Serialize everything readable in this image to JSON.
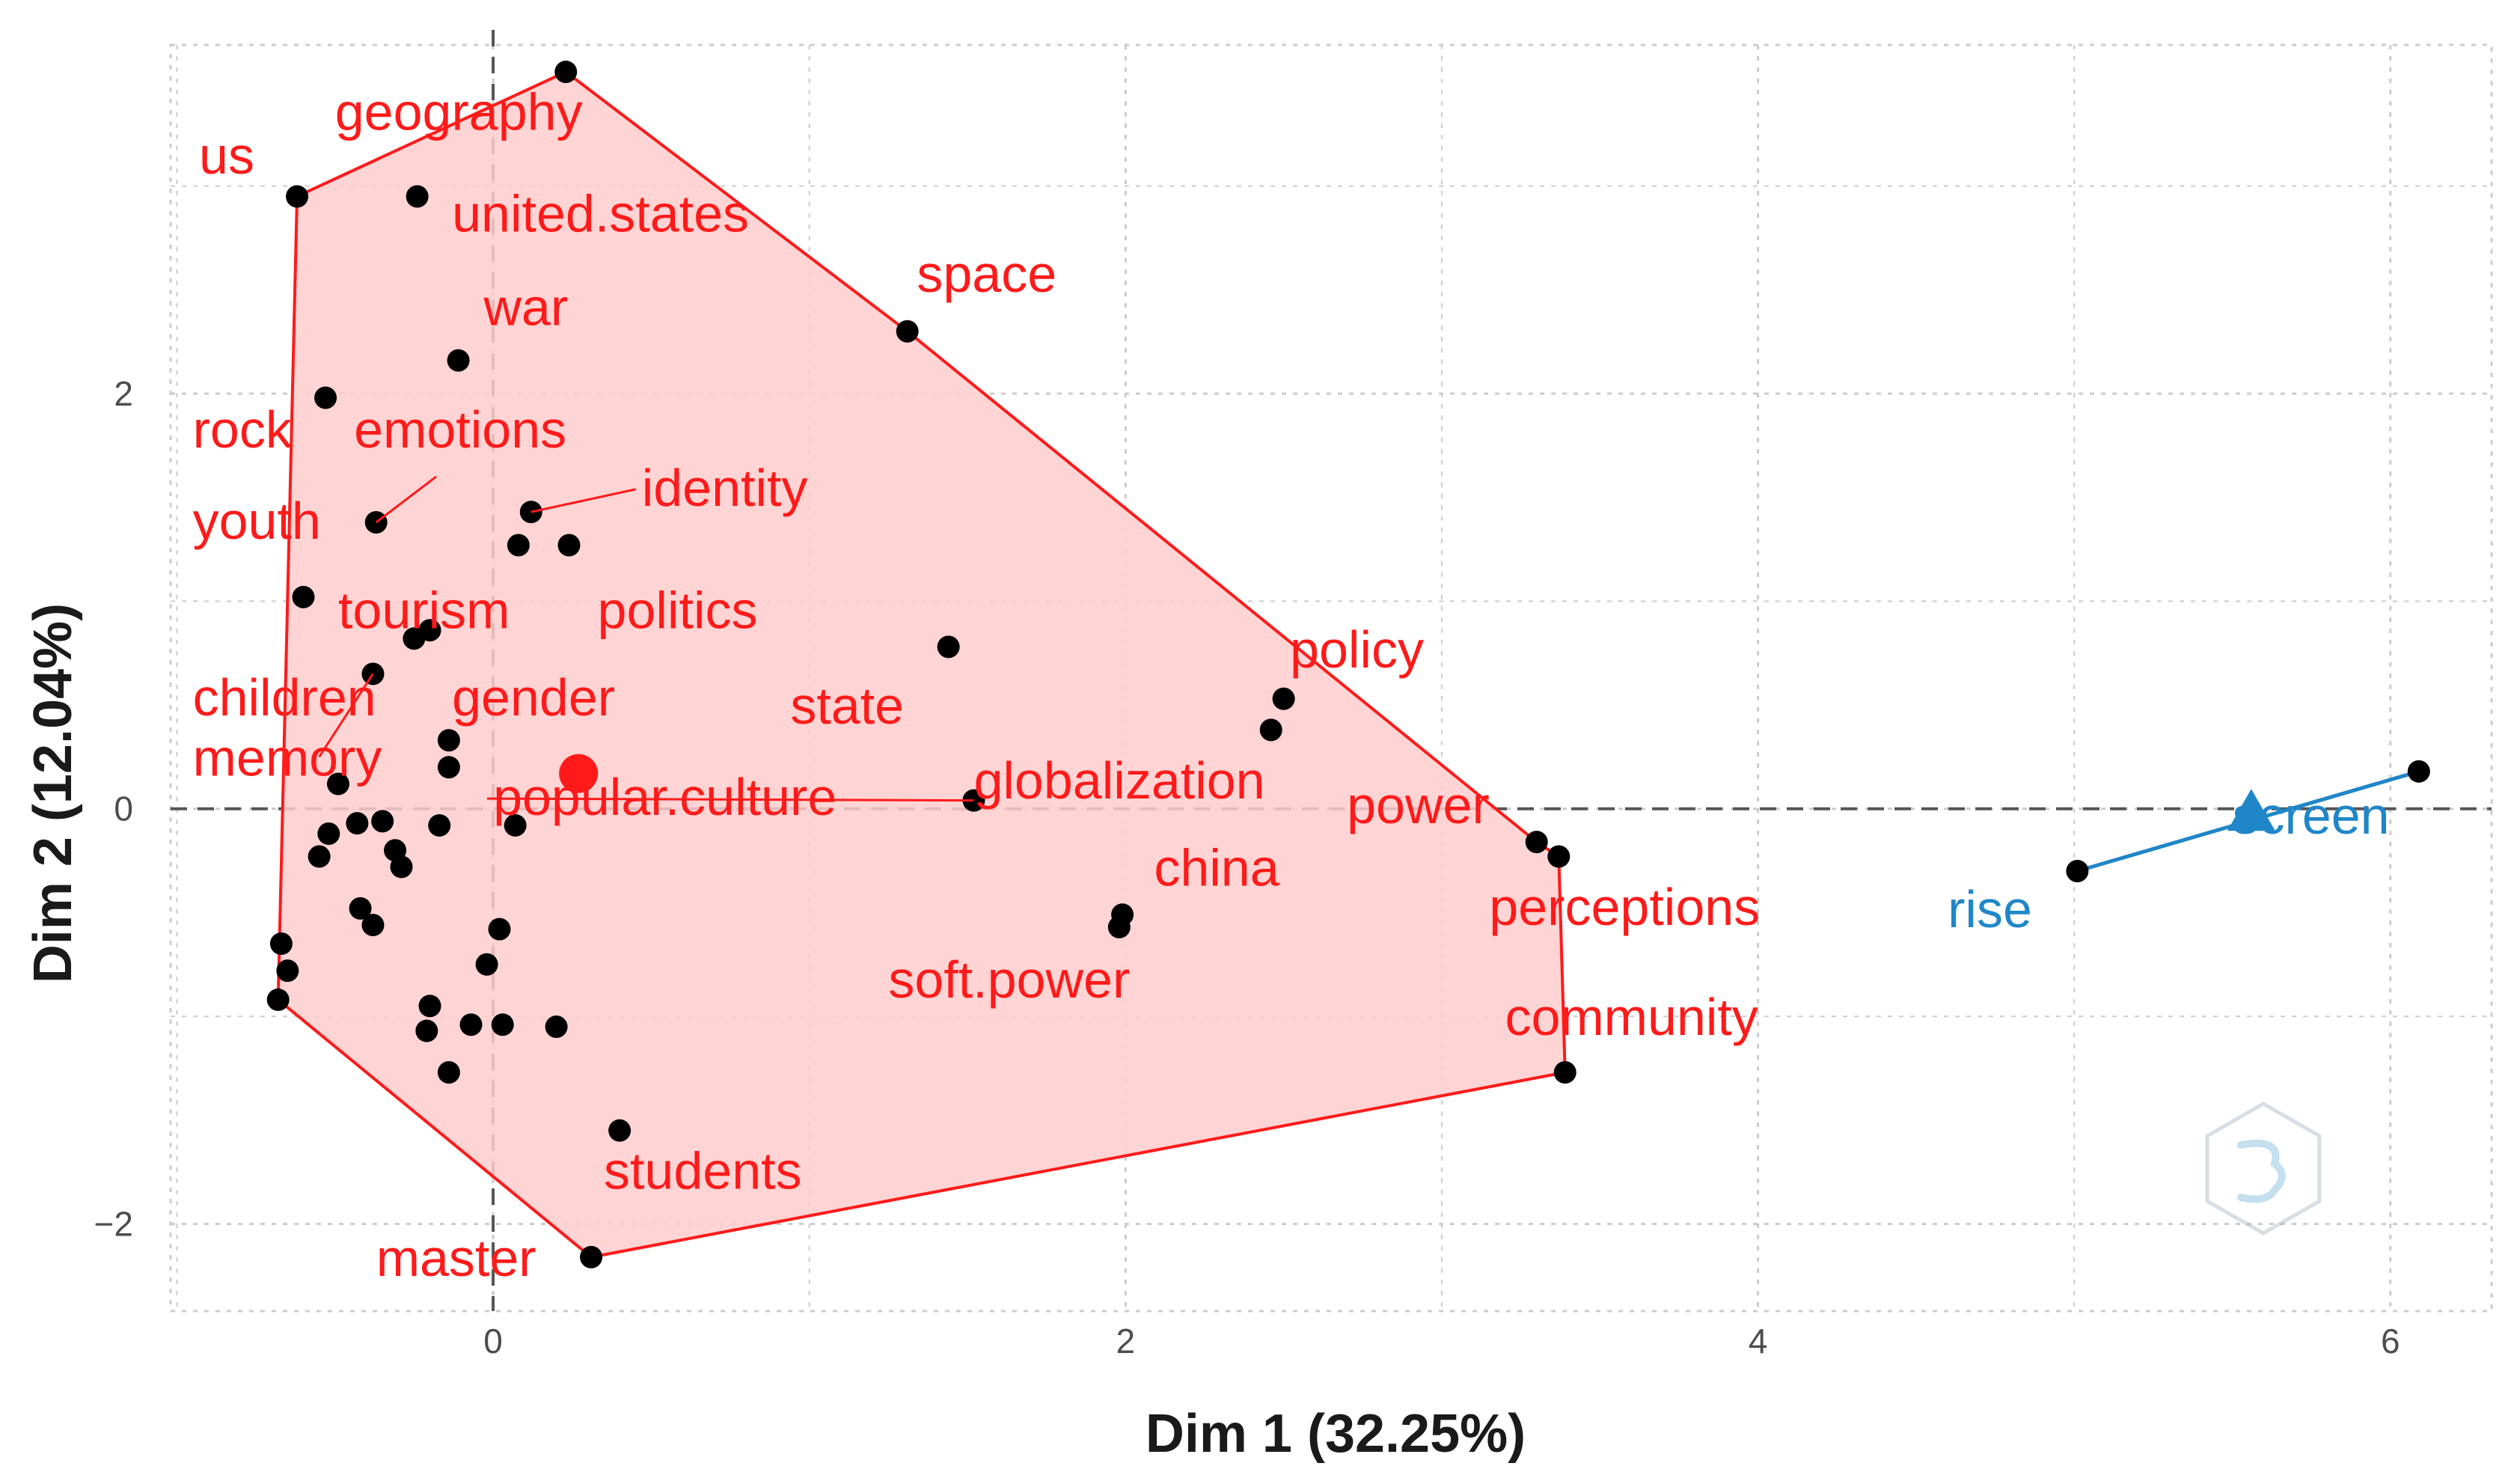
{
  "chart_data": {
    "type": "scatter",
    "title": "",
    "xlabel": "Dim 1 (32.25%)",
    "ylabel": "Dim 2 (12.04%)",
    "xlim": [
      -1.02,
      6.32
    ],
    "ylim": [
      -2.42,
      3.68
    ],
    "x_ticks": [
      {
        "value": 0,
        "label": "0"
      },
      {
        "value": 2,
        "label": "2"
      },
      {
        "value": 4,
        "label": "4"
      },
      {
        "value": 6,
        "label": "6"
      }
    ],
    "y_ticks": [
      {
        "value": -2,
        "label": "−2"
      },
      {
        "value": 0,
        "label": "0"
      },
      {
        "value": 2,
        "label": "2"
      }
    ],
    "grid": true,
    "colors": {
      "cluster1": "#ff1a1a",
      "cluster1_fill": "#ffcccc",
      "cluster2": "#1f86c8",
      "points": "#000000",
      "grid": "#cccccc",
      "zero_line": "#555555"
    },
    "clusters": [
      {
        "color": "#ff1a1a",
        "center": {
          "x": 0.27,
          "y": 0.17
        },
        "hull": [
          {
            "x": 0.23,
            "y": 3.55
          },
          {
            "x": 1.31,
            "y": 2.3
          },
          {
            "x": 3.3,
            "y": -0.16
          },
          {
            "x": 3.37,
            "y": -0.23
          },
          {
            "x": 3.39,
            "y": -1.27
          },
          {
            "x": 0.31,
            "y": -2.16
          },
          {
            "x": -0.68,
            "y": -0.92
          },
          {
            "x": -0.62,
            "y": 2.95
          }
        ],
        "points": [
          {
            "x": 0.23,
            "y": 3.55
          },
          {
            "x": -0.62,
            "y": 2.95
          },
          {
            "x": -0.24,
            "y": 2.95
          },
          {
            "x": 1.31,
            "y": 2.3
          },
          {
            "x": -0.11,
            "y": 2.16
          },
          {
            "x": -0.53,
            "y": 1.98
          },
          {
            "x": -0.37,
            "y": 1.38
          },
          {
            "x": 0.12,
            "y": 1.43
          },
          {
            "x": 0.08,
            "y": 1.27
          },
          {
            "x": 0.24,
            "y": 1.27
          },
          {
            "x": -0.6,
            "y": 1.02
          },
          {
            "x": -0.25,
            "y": 0.82
          },
          {
            "x": -0.2,
            "y": 0.86
          },
          {
            "x": 1.44,
            "y": 0.78
          },
          {
            "x": -0.38,
            "y": 0.65
          },
          {
            "x": 2.5,
            "y": 0.53
          },
          {
            "x": 2.46,
            "y": 0.38
          },
          {
            "x": -0.14,
            "y": 0.33
          },
          {
            "x": -0.14,
            "y": 0.2
          },
          {
            "x": -0.49,
            "y": 0.12
          },
          {
            "x": 1.52,
            "y": 0.04
          },
          {
            "x": -0.43,
            "y": -0.07
          },
          {
            "x": -0.52,
            "y": -0.12
          },
          {
            "x": -0.35,
            "y": -0.06
          },
          {
            "x": -0.17,
            "y": -0.08
          },
          {
            "x": 0.07,
            "y": -0.08
          },
          {
            "x": -0.55,
            "y": -0.23
          },
          {
            "x": -0.31,
            "y": -0.2
          },
          {
            "x": -0.29,
            "y": -0.28
          },
          {
            "x": -0.42,
            "y": -0.48
          },
          {
            "x": -0.38,
            "y": -0.56
          },
          {
            "x": 1.99,
            "y": -0.51
          },
          {
            "x": 1.98,
            "y": -0.57
          },
          {
            "x": 0.02,
            "y": -0.58
          },
          {
            "x": -0.67,
            "y": -0.65
          },
          {
            "x": -0.65,
            "y": -0.78
          },
          {
            "x": -0.02,
            "y": -0.75
          },
          {
            "x": 3.3,
            "y": -0.16
          },
          {
            "x": 3.37,
            "y": -0.23
          },
          {
            "x": -0.68,
            "y": -0.92
          },
          {
            "x": -0.2,
            "y": -0.95
          },
          {
            "x": -0.21,
            "y": -1.07
          },
          {
            "x": -0.07,
            "y": -1.04
          },
          {
            "x": 0.03,
            "y": -1.04
          },
          {
            "x": 0.2,
            "y": -1.05
          },
          {
            "x": -0.14,
            "y": -1.27
          },
          {
            "x": 3.39,
            "y": -1.27
          },
          {
            "x": 0.4,
            "y": -1.55
          },
          {
            "x": 0.31,
            "y": -2.16
          }
        ],
        "labels": [
          {
            "text": "us",
            "x": -0.93,
            "y": 3.06
          },
          {
            "text": "geography",
            "x": -0.5,
            "y": 3.27
          },
          {
            "text": "united.states",
            "x": -0.13,
            "y": 2.78
          },
          {
            "text": "war",
            "x": -0.03,
            "y": 2.33
          },
          {
            "text": "space",
            "x": 1.34,
            "y": 2.49
          },
          {
            "text": "rock",
            "x": -0.95,
            "y": 1.74
          },
          {
            "text": "emotions",
            "x": -0.44,
            "y": 1.74
          },
          {
            "text": "identity",
            "x": 0.47,
            "y": 1.46,
            "leader_to": {
              "x": 0.12,
              "y": 1.43
            }
          },
          {
            "text": "youth",
            "x": -0.95,
            "y": 1.3
          },
          {
            "text": "tourism",
            "x": -0.49,
            "y": 0.87
          },
          {
            "text": "politics",
            "x": 0.33,
            "y": 0.87
          },
          {
            "text": "policy",
            "x": 2.52,
            "y": 0.68
          },
          {
            "text": "children",
            "x": -0.95,
            "y": 0.45
          },
          {
            "text": "gender",
            "x": -0.13,
            "y": 0.45
          },
          {
            "text": "state",
            "x": 0.94,
            "y": 0.41
          },
          {
            "text": "memory",
            "x": -0.95,
            "y": 0.16
          },
          {
            "text": "popular.culture",
            "x": 0.0,
            "y": -0.03,
            "leader_to": {
              "x": 1.52,
              "y": 0.04
            }
          },
          {
            "text": "globalization",
            "x": 1.52,
            "y": 0.05
          },
          {
            "text": "power",
            "x": 2.7,
            "y": -0.07
          },
          {
            "text": "china",
            "x": 2.09,
            "y": -0.37
          },
          {
            "text": "perceptions",
            "x": 3.15,
            "y": -0.56
          },
          {
            "text": "soft.power",
            "x": 1.25,
            "y": -0.91
          },
          {
            "text": "community",
            "x": 3.2,
            "y": -1.09
          },
          {
            "text": "students",
            "x": 0.35,
            "y": -1.83
          },
          {
            "text": "master",
            "x": -0.37,
            "y": -2.25
          }
        ]
      },
      {
        "color": "#1f86c8",
        "center": {
          "x": 5.56,
          "y": -0.02
        },
        "hull": [
          {
            "x": 5.01,
            "y": -0.3
          },
          {
            "x": 6.09,
            "y": 0.18
          }
        ],
        "points": [
          {
            "x": 5.01,
            "y": -0.3
          },
          {
            "x": 6.09,
            "y": 0.18
          }
        ],
        "labels": [
          {
            "text": "screen",
            "x": 5.5,
            "y": -0.12
          },
          {
            "text": "rise",
            "x": 4.6,
            "y": -0.57
          }
        ]
      }
    ]
  }
}
